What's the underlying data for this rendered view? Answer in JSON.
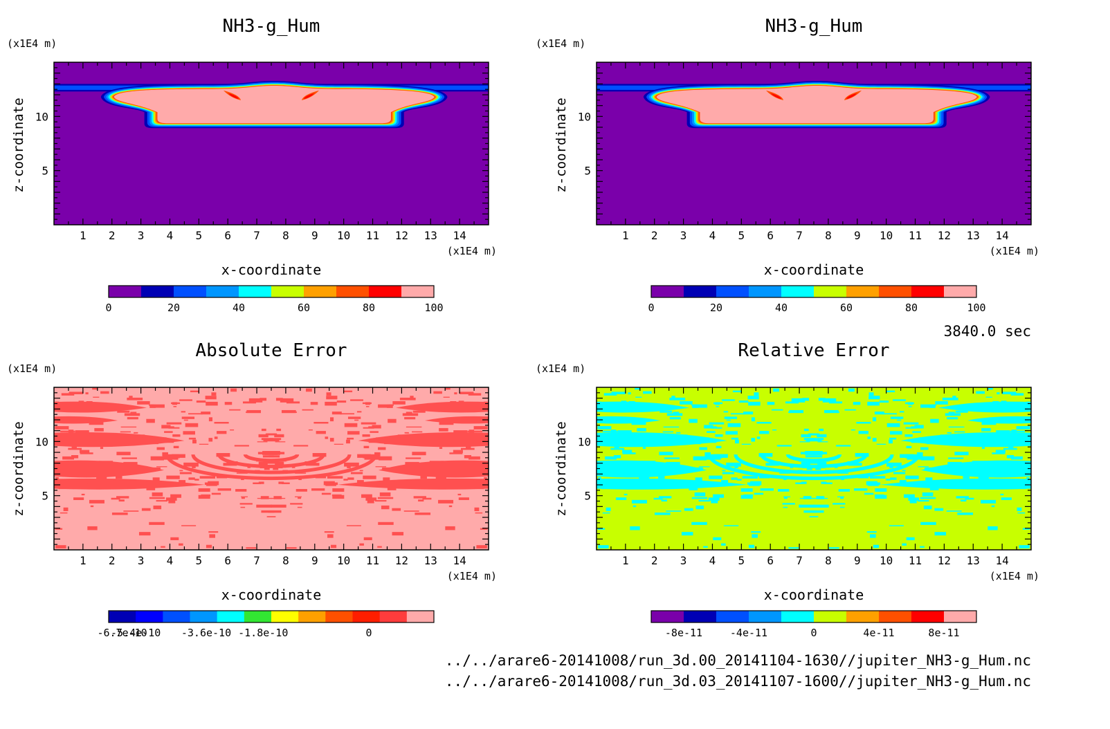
{
  "time_label": "3840.0 sec",
  "footer": {
    "file_1": "../../arare6-20141008/run_3d.00_20141104-1630//jupiter_NH3-g_Hum.nc",
    "file_2": "../../arare6-20141008/run_3d.03_20141107-1600//jupiter_NH3-g_Hum.nc"
  },
  "chart_data": [
    {
      "type": "heatmap",
      "title": "NH3-g_Hum",
      "xlabel": "x-coordinate",
      "ylabel": "z-coordinate",
      "x_unit": "(x1E4 m)",
      "y_unit": "(x1E4 m)",
      "xlim": [
        0,
        15
      ],
      "ylim": [
        0,
        15
      ],
      "x_ticks": [
        "1",
        "2",
        "3",
        "4",
        "5",
        "6",
        "7",
        "8",
        "9",
        "10",
        "11",
        "12",
        "13",
        "14"
      ],
      "y_ticks": [
        "5",
        "10"
      ],
      "field": "plume",
      "colorbar": {
        "colors": [
          "#7a00aa",
          "#0000b4",
          "#0050ff",
          "#0096ff",
          "#00ffff",
          "#c8ff00",
          "#ffa000",
          "#ff5000",
          "#ff0000",
          "#ffaaaa"
        ],
        "tick_labels": [
          "0",
          "20",
          "40",
          "60",
          "80",
          "100"
        ]
      }
    },
    {
      "type": "heatmap",
      "title": "NH3-g_Hum",
      "xlabel": "x-coordinate",
      "ylabel": "z-coordinate",
      "x_unit": "(x1E4 m)",
      "y_unit": "(x1E4 m)",
      "xlim": [
        0,
        15
      ],
      "ylim": [
        0,
        15
      ],
      "x_ticks": [
        "1",
        "2",
        "3",
        "4",
        "5",
        "6",
        "7",
        "8",
        "9",
        "10",
        "11",
        "12",
        "13",
        "14"
      ],
      "y_ticks": [
        "5",
        "10"
      ],
      "field": "plume",
      "colorbar": {
        "colors": [
          "#7a00aa",
          "#0000b4",
          "#0050ff",
          "#0096ff",
          "#00ffff",
          "#c8ff00",
          "#ffa000",
          "#ff5000",
          "#ff0000",
          "#ffaaaa"
        ],
        "tick_labels": [
          "0",
          "20",
          "40",
          "60",
          "80",
          "100"
        ]
      }
    },
    {
      "type": "heatmap",
      "title": "Absolute Error",
      "xlabel": "x-coordinate",
      "ylabel": "z-coordinate",
      "x_unit": "(x1E4 m)",
      "y_unit": "(x1E4 m)",
      "xlim": [
        0,
        15
      ],
      "ylim": [
        0,
        15
      ],
      "x_ticks": [
        "1",
        "2",
        "3",
        "4",
        "5",
        "6",
        "7",
        "8",
        "9",
        "10",
        "11",
        "12",
        "13",
        "14"
      ],
      "y_ticks": [
        "5",
        "10"
      ],
      "field": "noise",
      "field_colors": [
        "#ffaaaa",
        "#ff5050"
      ],
      "colorbar": {
        "colors": [
          "#0000b4",
          "#0000ff",
          "#0050ff",
          "#0096ff",
          "#00ffff",
          "#32e632",
          "#ffff00",
          "#ffa000",
          "#ff5000",
          "#ff1e00",
          "#ff3c3c",
          "#ffaaaa"
        ],
        "tick_labels": [
          "-6.7e-10",
          "-5.4e-10",
          "-3.6e-10",
          "-1.8e-10",
          "0"
        ]
      }
    },
    {
      "type": "heatmap",
      "title": "Relative Error",
      "xlabel": "x-coordinate",
      "ylabel": "z-coordinate",
      "x_unit": "(x1E4 m)",
      "y_unit": "(x1E4 m)",
      "xlim": [
        0,
        15
      ],
      "ylim": [
        0,
        15
      ],
      "x_ticks": [
        "1",
        "2",
        "3",
        "4",
        "5",
        "6",
        "7",
        "8",
        "9",
        "10",
        "11",
        "12",
        "13",
        "14"
      ],
      "y_ticks": [
        "5",
        "10"
      ],
      "field": "noise",
      "field_colors": [
        "#c8ff00",
        "#00ffff"
      ],
      "colorbar": {
        "colors": [
          "#7a00aa",
          "#0000b4",
          "#0050ff",
          "#0096ff",
          "#00ffff",
          "#c8ff00",
          "#ffa000",
          "#ff5000",
          "#ff0000",
          "#ffaaaa"
        ],
        "tick_labels": [
          "-8e-11",
          "-4e-11",
          "0",
          "4e-11",
          "8e-11"
        ]
      }
    }
  ]
}
